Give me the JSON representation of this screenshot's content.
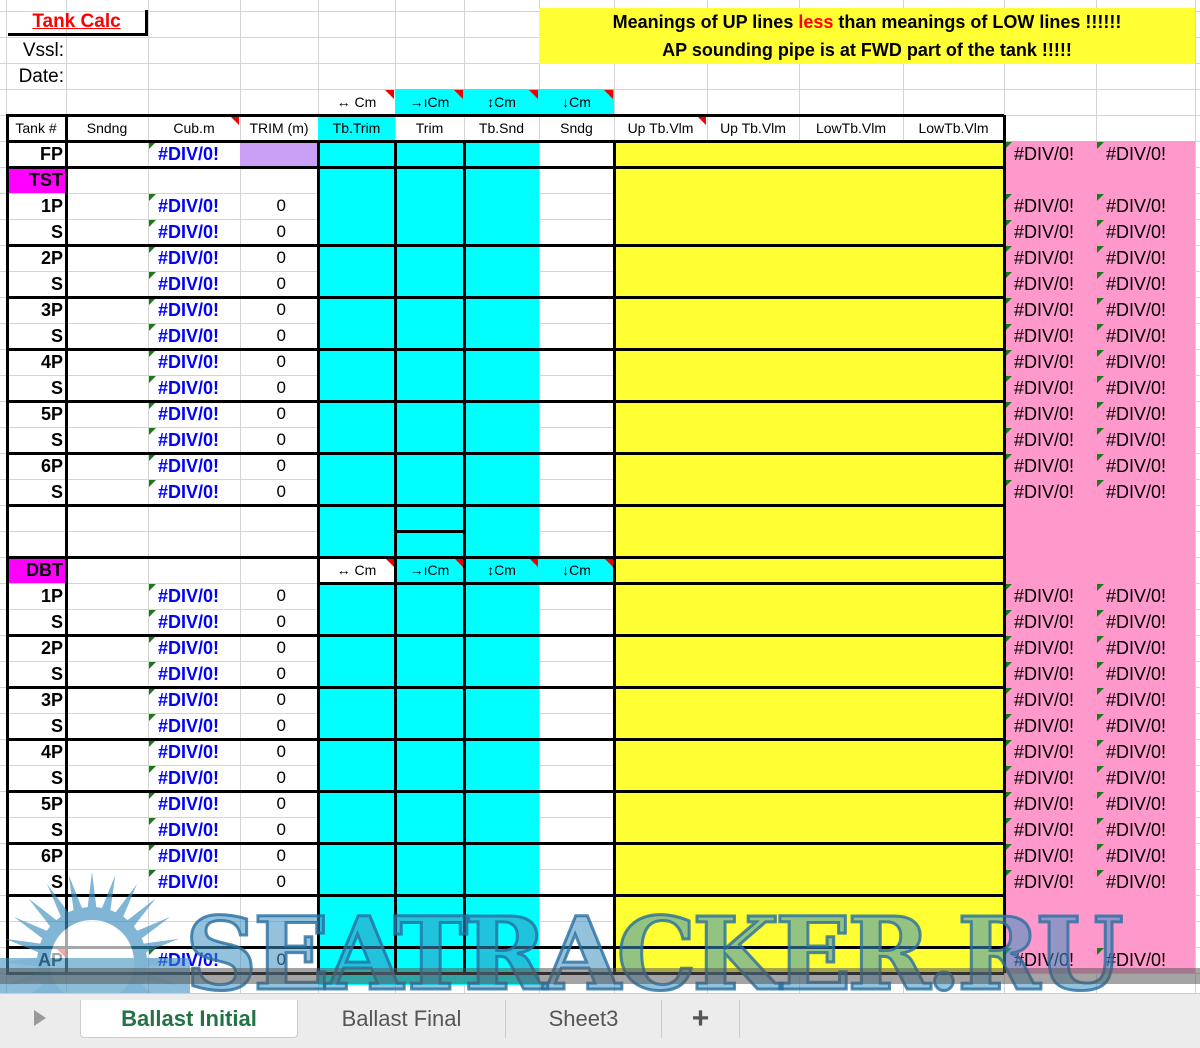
{
  "title": "Tank Calc",
  "labels": {
    "vessel": "Vssl:",
    "date": "Date:"
  },
  "banner": {
    "line1_a": "Meanings of UP lines ",
    "line1_b": "less",
    "line1_c": " than meanings of LOW lines !!!!!!",
    "line2": "AP sounding pipe is at FWD part of the tank !!!!!"
  },
  "icon_row": [
    "↔ Cm",
    "→ıCm",
    "↕Cm",
    "↓Cm"
  ],
  "headers": [
    "Tank #",
    "Sndng",
    "Cub.m",
    "TRIM (m)",
    "Tb.Trim",
    "Trim",
    "Tb.Snd",
    "Sndg",
    "Up Tb.Vlm",
    "Up Tb.Vlm",
    "LowTb.Vlm",
    "LowTb.Vlm"
  ],
  "error": "#DIV/0!",
  "fp": {
    "label": "FP",
    "cub": "#DIV/0!",
    "m": "#DIV/0!",
    "n": "#DIV/0!"
  },
  "sections": [
    {
      "label": "TST",
      "rows": [
        {
          "t": "1P",
          "trim": "0"
        },
        {
          "t": "S",
          "trim": "0"
        },
        {
          "t": "2P",
          "trim": "0"
        },
        {
          "t": "S",
          "trim": "0"
        },
        {
          "t": "3P",
          "trim": "0"
        },
        {
          "t": "S",
          "trim": "0"
        },
        {
          "t": "4P",
          "trim": "0"
        },
        {
          "t": "S",
          "trim": "0"
        },
        {
          "t": "5P",
          "trim": "0"
        },
        {
          "t": "S",
          "trim": "0"
        },
        {
          "t": "6P",
          "trim": "0"
        },
        {
          "t": "S",
          "trim": "0"
        }
      ]
    },
    {
      "label": "DBT",
      "rows": [
        {
          "t": "1P",
          "trim": "0"
        },
        {
          "t": "S",
          "trim": "0"
        },
        {
          "t": "2P",
          "trim": "0"
        },
        {
          "t": "S",
          "trim": "0"
        },
        {
          "t": "3P",
          "trim": "0"
        },
        {
          "t": "S",
          "trim": "0"
        },
        {
          "t": "4P",
          "trim": "0"
        },
        {
          "t": "S",
          "trim": "0"
        },
        {
          "t": "5P",
          "trim": "0"
        },
        {
          "t": "S",
          "trim": "0"
        },
        {
          "t": "6P",
          "trim": "0"
        },
        {
          "t": "S",
          "trim": "0"
        }
      ]
    }
  ],
  "ap": {
    "label": "AP",
    "cub": "#DIV/0!",
    "trim": "0",
    "m": "#DIV/0!",
    "n": "#DIV/0!"
  },
  "tabs": [
    "Ballast Initial",
    "Ballast Final",
    "Sheet3"
  ],
  "add_tab": "+",
  "watermark": "SEATRACKER.RU",
  "colors": {
    "cyan": "#00ffff",
    "yellow": "#ffff33",
    "pink": "#ff99cc",
    "magenta": "#ff00ff",
    "lavender": "#c9a0f5",
    "error_blue": "#0000ff",
    "title_red": "#ff0000",
    "active_tab": "#217346"
  }
}
